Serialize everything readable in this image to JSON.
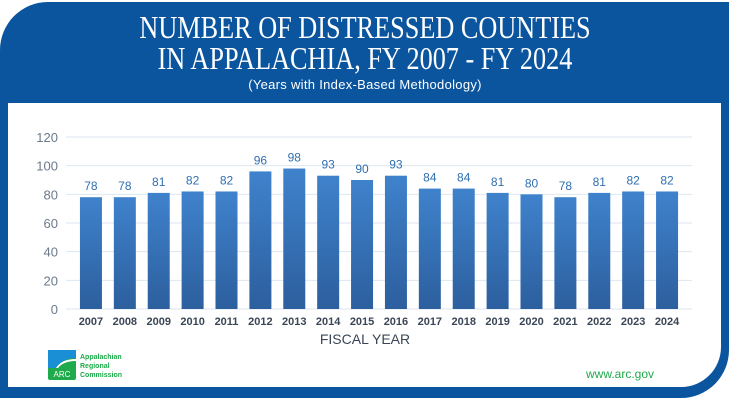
{
  "title_line1": "NUMBER OF DISTRESSED COUNTIES",
  "title_line2": "IN APPALACHIA, FY 2007 - FY 2024",
  "subtitle": "(Years with Index-Based Methodology)",
  "logo": {
    "mark": "ARC",
    "line1": "Appalachian",
    "line2": "Regional",
    "line3": "Commission"
  },
  "url": "www.arc.gov",
  "colors": {
    "frame": "#0b559f",
    "bar": "#3a78c2",
    "accent_green": "#1faa4b"
  },
  "chart_data": {
    "type": "bar",
    "title": "NUMBER OF DISTRESSED COUNTIES IN APPALACHIA, FY 2007 - FY 2024",
    "subtitle": "(Years with Index-Based Methodology)",
    "xlabel": "FISCAL YEAR",
    "ylabel": "",
    "ylim": [
      0,
      120
    ],
    "yticks": [
      0,
      20,
      40,
      60,
      80,
      100,
      120
    ],
    "grid": true,
    "categories": [
      "2007",
      "2008",
      "2009",
      "2010",
      "2011",
      "2012",
      "2013",
      "2014",
      "2015",
      "2016",
      "2017",
      "2018",
      "2019",
      "2020",
      "2021",
      "2022",
      "2023",
      "2024"
    ],
    "values": [
      78,
      78,
      81,
      82,
      82,
      96,
      98,
      93,
      90,
      93,
      84,
      84,
      81,
      80,
      78,
      81,
      82,
      82
    ]
  }
}
